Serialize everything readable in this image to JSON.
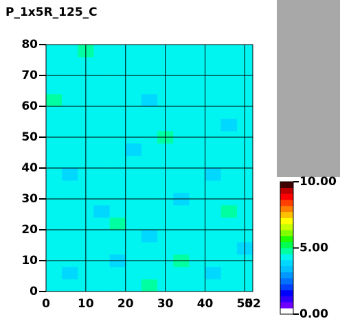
{
  "chart_data": {
    "type": "heatmap",
    "title": "P_1x5R_125_C",
    "xlim": [
      0,
      52
    ],
    "ylim": [
      0,
      80
    ],
    "xticks": [
      0,
      10,
      20,
      30,
      40,
      50,
      52
    ],
    "yticks": [
      0,
      10,
      20,
      30,
      40,
      50,
      60,
      70,
      80
    ],
    "grid": true,
    "zlim": [
      0,
      10
    ],
    "zticks": [
      {
        "value": 0,
        "label": "0.00"
      },
      {
        "value": 5,
        "label": "5.00"
      },
      {
        "value": 10,
        "label": "10.00"
      }
    ],
    "colormap": [
      "#ffffff",
      "#7000ff",
      "#3000ff",
      "#0000ff",
      "#0040ff",
      "#0070ff",
      "#0098ff",
      "#00c0ff",
      "#00d8ff",
      "#00f4f0",
      "#00ffa0",
      "#00ff50",
      "#20ff00",
      "#80ff00",
      "#c8ff00",
      "#ffff00",
      "#ffc000",
      "#ff8000",
      "#ff4000",
      "#ff0000",
      "#c00000",
      "#400000"
    ],
    "z": [
      [
        4.3,
        4.4,
        4.2,
        4.5,
        4.3,
        4.4,
        4.6,
        4.3,
        4.2,
        4.4,
        4.3,
        4.5,
        4.4
      ],
      [
        4.2,
        4.0,
        4.4,
        4.3,
        4.4,
        4.2,
        4.3,
        4.5,
        4.4,
        4.3,
        4.0,
        4.4,
        4.3
      ],
      [
        4.4,
        4.3,
        4.5,
        4.2,
        4.0,
        4.4,
        4.3,
        4.2,
        4.6,
        4.4,
        4.3,
        4.2,
        4.4
      ],
      [
        4.3,
        4.4,
        4.3,
        4.4,
        4.3,
        4.5,
        4.2,
        4.4,
        4.3,
        4.2,
        4.4,
        4.3,
        4.0
      ],
      [
        4.5,
        4.2,
        4.4,
        4.3,
        4.4,
        4.3,
        4.0,
        4.3,
        4.4,
        4.5,
        4.3,
        4.4,
        4.3
      ],
      [
        4.3,
        4.4,
        4.2,
        4.4,
        4.6,
        4.3,
        4.4,
        4.2,
        4.3,
        4.4,
        4.2,
        4.3,
        4.4
      ],
      [
        4.4,
        4.3,
        4.4,
        4.0,
        4.3,
        4.4,
        4.3,
        4.5,
        4.4,
        4.3,
        4.4,
        4.6,
        4.3
      ],
      [
        4.2,
        4.4,
        4.3,
        4.4,
        4.2,
        4.3,
        4.4,
        4.3,
        4.0,
        4.4,
        4.3,
        4.4,
        4.2
      ],
      [
        4.4,
        4.3,
        4.5,
        4.3,
        4.4,
        4.2,
        4.3,
        4.4,
        4.3,
        4.2,
        4.4,
        4.3,
        4.4
      ],
      [
        4.3,
        4.0,
        4.3,
        4.4,
        4.3,
        4.4,
        4.5,
        4.3,
        4.4,
        4.3,
        4.0,
        4.4,
        4.3
      ],
      [
        4.4,
        4.3,
        4.4,
        4.2,
        4.4,
        4.3,
        4.2,
        4.4,
        4.3,
        4.5,
        4.3,
        4.2,
        4.4
      ],
      [
        4.2,
        4.4,
        4.3,
        4.4,
        4.3,
        4.0,
        4.4,
        4.3,
        4.4,
        4.3,
        4.4,
        4.3,
        4.5
      ],
      [
        4.4,
        4.3,
        4.2,
        4.3,
        4.4,
        4.3,
        4.4,
        4.6,
        4.3,
        4.4,
        4.2,
        4.4,
        4.3
      ],
      [
        4.3,
        4.5,
        4.4,
        4.3,
        4.2,
        4.4,
        4.3,
        4.4,
        4.2,
        4.3,
        4.4,
        4.0,
        4.4
      ],
      [
        4.4,
        4.3,
        4.4,
        4.4,
        4.3,
        4.3,
        4.4,
        4.2,
        4.4,
        4.3,
        4.3,
        4.4,
        4.2
      ],
      [
        4.6,
        4.4,
        4.3,
        4.2,
        4.4,
        4.4,
        4.0,
        4.3,
        4.4,
        4.4,
        4.3,
        4.3,
        4.4
      ],
      [
        4.3,
        4.2,
        4.4,
        4.3,
        4.4,
        4.3,
        4.4,
        4.4,
        4.3,
        4.2,
        4.5,
        4.4,
        4.3
      ],
      [
        4.4,
        4.4,
        4.3,
        4.5,
        4.3,
        4.2,
        4.4,
        4.3,
        4.4,
        4.4,
        4.3,
        4.2,
        4.4
      ],
      [
        4.3,
        4.2,
        4.4,
        4.3,
        4.4,
        4.4,
        4.3,
        4.4,
        4.2,
        4.3,
        4.4,
        4.4,
        4.3
      ],
      [
        4.4,
        4.3,
        4.6,
        4.4,
        4.3,
        4.3,
        4.4,
        4.3,
        4.4,
        4.5,
        4.3,
        4.4,
        4.4
      ]
    ]
  }
}
